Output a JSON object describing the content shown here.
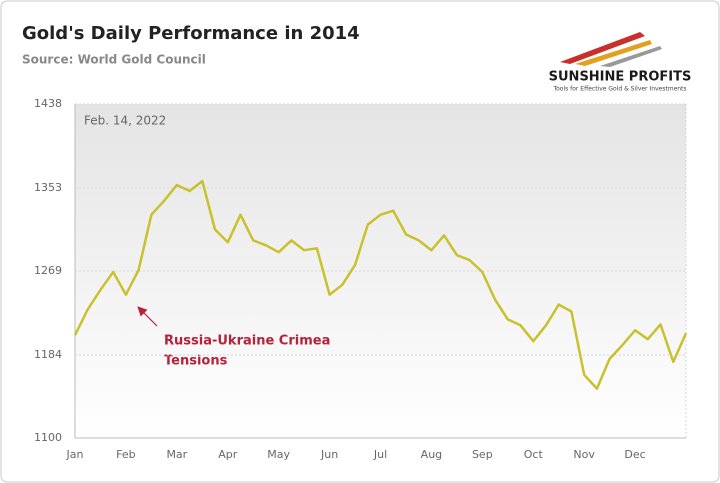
{
  "chart_data": {
    "type": "line",
    "title": "Gold's Daily Performance in 2014",
    "subtitle": "Source: World Gold Council",
    "date_note": "Feb. 14, 2022",
    "annotation_lines": [
      "Russia-Ukraine Crimea",
      "Tensions"
    ],
    "logo_name": "SUNSHINE PROFITS",
    "logo_tagline": "Tools for Effective Gold & Silver Investments",
    "categories": [
      "Jan",
      null,
      null,
      null,
      "Feb",
      null,
      null,
      null,
      "Mar",
      null,
      null,
      null,
      "Apr",
      null,
      null,
      null,
      "May",
      null,
      null,
      null,
      "Jun",
      null,
      null,
      null,
      "Jul",
      null,
      null,
      null,
      "Aug",
      null,
      null,
      null,
      "Sep",
      null,
      null,
      null,
      "Oct",
      null,
      null,
      null,
      "Nov",
      null,
      null,
      null,
      "Dec",
      null,
      null,
      null,
      null
    ],
    "series": [
      {
        "name": "Gold",
        "color": "#c9c12c",
        "values": [
          1204,
          1230,
          1250,
          1268,
          1245,
          1270,
          1326,
          1340,
          1356,
          1350,
          1360,
          1311,
          1298,
          1326,
          1300,
          1295,
          1288,
          1300,
          1290,
          1292,
          1245,
          1255,
          1275,
          1316,
          1326,
          1330,
          1306,
          1300,
          1290,
          1305,
          1285,
          1280,
          1268,
          1240,
          1220,
          1214,
          1198,
          1214,
          1235,
          1228,
          1164,
          1150,
          1180,
          1194,
          1209,
          1200,
          1215,
          1177,
          1206
        ]
      }
    ],
    "ylim": [
      1100,
      1438
    ],
    "yticks": [
      1100,
      1184,
      1269,
      1353,
      1438
    ],
    "grid": true
  }
}
